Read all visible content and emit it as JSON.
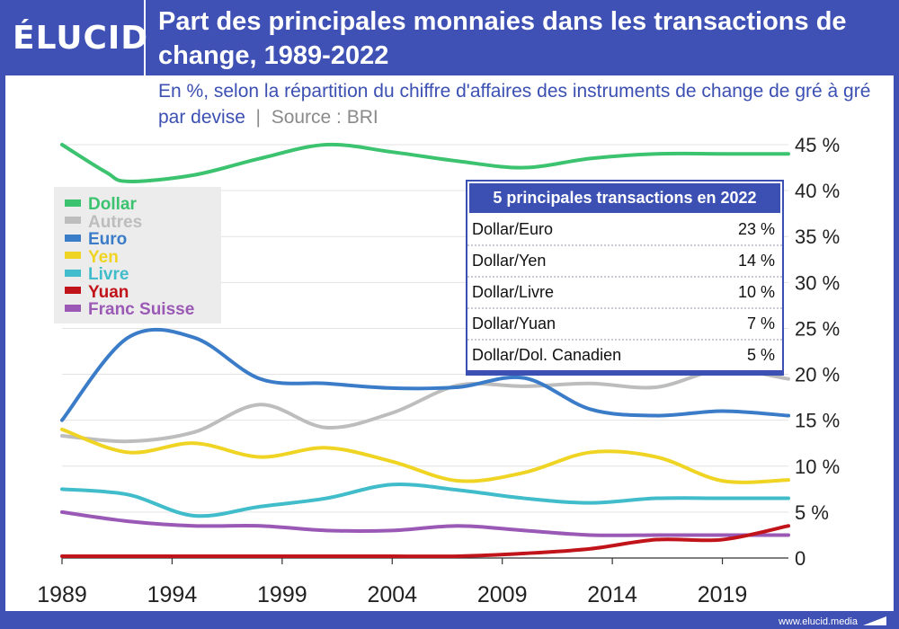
{
  "brand": {
    "logo": "ÉLUCID",
    "url": "www.elucid.media"
  },
  "header": {
    "title": "Part des principales monnaies dans les transactions de change, 1989-2022"
  },
  "subtitle": {
    "text": "En %, selon la répartition du chiffre d'affaires des instruments de change de gré à gré par devise",
    "source": "Source : BRI"
  },
  "colors": {
    "background": "#3f51b5",
    "accent": "#3b50b2"
  },
  "chart_data": {
    "type": "line",
    "xlim": [
      1989,
      2022
    ],
    "ylim": [
      0,
      45
    ],
    "xticks": [
      "1989",
      "1994",
      "1999",
      "2004",
      "2009",
      "2014",
      "2019"
    ],
    "yticks": [
      "0",
      "5 %",
      "10 %",
      "15 %",
      "20 %",
      "25 %",
      "30 %",
      "35 %",
      "40 %",
      "45 %"
    ],
    "grid": true,
    "legend_position": "left",
    "series": [
      {
        "name": "Dollar",
        "color": "#3cc36f",
        "points": [
          [
            1989,
            45
          ],
          [
            1991,
            42
          ],
          [
            1992,
            41
          ],
          [
            1995,
            41.7
          ],
          [
            1998,
            43.5
          ],
          [
            2001,
            45
          ],
          [
            2004,
            44.2
          ],
          [
            2007,
            43.2
          ],
          [
            2010,
            42.5
          ],
          [
            2013,
            43.5
          ],
          [
            2016,
            44
          ],
          [
            2019,
            44
          ],
          [
            2022,
            44
          ]
        ]
      },
      {
        "name": "Autres",
        "color": "#bdbdbd",
        "points": [
          [
            1989,
            13.3
          ],
          [
            1992,
            12.7
          ],
          [
            1995,
            13.7
          ],
          [
            1998,
            16.7
          ],
          [
            2001,
            14.2
          ],
          [
            2004,
            15.8
          ],
          [
            2007,
            18.8
          ],
          [
            2010,
            18.7
          ],
          [
            2013,
            19
          ],
          [
            2016,
            18.6
          ],
          [
            2019,
            20.5
          ],
          [
            2022,
            19.5
          ]
        ]
      },
      {
        "name": "Euro",
        "color": "#3b7cc9",
        "points": [
          [
            1989,
            15
          ],
          [
            1992,
            24
          ],
          [
            1995,
            24
          ],
          [
            1998,
            19.5
          ],
          [
            2001,
            19
          ],
          [
            2004,
            18.5
          ],
          [
            2007,
            18.6
          ],
          [
            2010,
            19.6
          ],
          [
            2013,
            16.2
          ],
          [
            2016,
            15.5
          ],
          [
            2019,
            16
          ],
          [
            2022,
            15.5
          ]
        ]
      },
      {
        "name": "Yen",
        "color": "#f0d423",
        "points": [
          [
            1989,
            14
          ],
          [
            1992,
            11.5
          ],
          [
            1995,
            12.5
          ],
          [
            1998,
            11
          ],
          [
            2001,
            12
          ],
          [
            2004,
            10.5
          ],
          [
            2007,
            8.4
          ],
          [
            2010,
            9.3
          ],
          [
            2013,
            11.5
          ],
          [
            2016,
            11
          ],
          [
            2019,
            8.4
          ],
          [
            2022,
            8.5
          ]
        ]
      },
      {
        "name": "Livre",
        "color": "#40bcca",
        "points": [
          [
            1989,
            7.5
          ],
          [
            1992,
            6.9
          ],
          [
            1995,
            4.6
          ],
          [
            1998,
            5.6
          ],
          [
            2001,
            6.5
          ],
          [
            2004,
            8
          ],
          [
            2007,
            7.4
          ],
          [
            2010,
            6.5
          ],
          [
            2013,
            6
          ],
          [
            2016,
            6.5
          ],
          [
            2019,
            6.5
          ],
          [
            2022,
            6.5
          ]
        ]
      },
      {
        "name": "Yuan",
        "color": "#c0141a",
        "points": [
          [
            1989,
            0.2
          ],
          [
            1992,
            0.2
          ],
          [
            1995,
            0.2
          ],
          [
            1998,
            0.2
          ],
          [
            2001,
            0.2
          ],
          [
            2004,
            0.2
          ],
          [
            2007,
            0.2
          ],
          [
            2010,
            0.5
          ],
          [
            2013,
            1
          ],
          [
            2016,
            2
          ],
          [
            2019,
            2
          ],
          [
            2022,
            3.5
          ]
        ]
      },
      {
        "name": "Franc Suisse",
        "color": "#9b59b6",
        "points": [
          [
            1989,
            5
          ],
          [
            1992,
            4
          ],
          [
            1995,
            3.5
          ],
          [
            1998,
            3.5
          ],
          [
            2001,
            3
          ],
          [
            2004,
            3
          ],
          [
            2007,
            3.5
          ],
          [
            2010,
            3
          ],
          [
            2013,
            2.5
          ],
          [
            2016,
            2.5
          ],
          [
            2019,
            2.5
          ],
          [
            2022,
            2.5
          ]
        ]
      }
    ]
  },
  "table": {
    "title": "5 principales transactions en 2022",
    "rows": [
      {
        "pair": "Dollar/Euro",
        "value": "23 %"
      },
      {
        "pair": "Dollar/Yen",
        "value": "14 %"
      },
      {
        "pair": "Dollar/Livre",
        "value": "10 %"
      },
      {
        "pair": "Dollar/Yuan",
        "value": "7 %"
      },
      {
        "pair": "Dollar/Dol. Canadien",
        "value": "5 %"
      }
    ]
  }
}
